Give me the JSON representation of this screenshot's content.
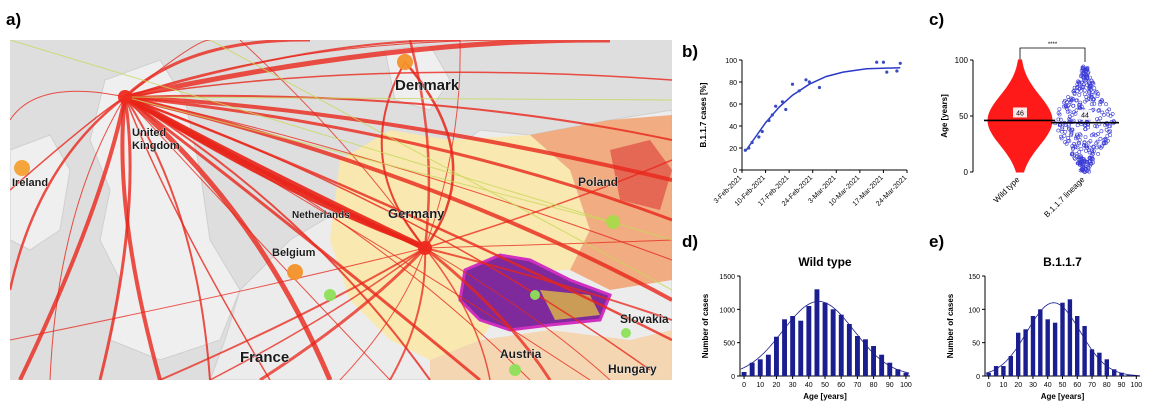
{
  "panel_labels": {
    "a": "a)",
    "b": "b)",
    "c": "c)",
    "d": "d)",
    "e": "e)"
  },
  "map": {
    "place_labels": [
      "United Kingdom",
      "Ireland",
      "Denmark",
      "Netherlands",
      "Germany",
      "Poland",
      "Belgium",
      "France",
      "Austria",
      "Slovakia",
      "Hungary"
    ],
    "colors": {
      "route": "#e8251a",
      "sea": "#e0e0e0",
      "land": "#ececec",
      "heat_low": "#fbe6a6",
      "heat_high": "#e8734e",
      "czech": "#c12d9b"
    }
  },
  "chart_data": [
    {
      "panel": "b",
      "type": "scatter",
      "ylabel": "B.1.1.7 cases [%]",
      "xlabel": "",
      "x_tick_labels": [
        "3-Feb-2021",
        "10-Feb-2021",
        "17-Feb-2021",
        "24-Feb-2021",
        "3-Mar-2021",
        "10-Mar-2021",
        "17-Mar-2021",
        "24-Mar-2021"
      ],
      "x_tick_dates": [
        "2021-02-03",
        "2021-02-10",
        "2021-02-17",
        "2021-02-24",
        "2021-03-03",
        "2021-03-10",
        "2021-03-17",
        "2021-03-24"
      ],
      "xlim": [
        "2021-02-03",
        "2021-03-24"
      ],
      "ylim": [
        0,
        100
      ],
      "y_ticks": [
        0,
        20,
        40,
        60,
        80,
        100
      ],
      "points": [
        {
          "x": "2021-02-04",
          "y": 18
        },
        {
          "x": "2021-02-05",
          "y": 20
        },
        {
          "x": "2021-02-06",
          "y": 25
        },
        {
          "x": "2021-02-08",
          "y": 30
        },
        {
          "x": "2021-02-09",
          "y": 35
        },
        {
          "x": "2021-02-11",
          "y": 45
        },
        {
          "x": "2021-02-12",
          "y": 50
        },
        {
          "x": "2021-02-13",
          "y": 58
        },
        {
          "x": "2021-02-15",
          "y": 62
        },
        {
          "x": "2021-02-16",
          "y": 55
        },
        {
          "x": "2021-02-18",
          "y": 78
        },
        {
          "x": "2021-02-20",
          "y": 72
        },
        {
          "x": "2021-02-22",
          "y": 82
        },
        {
          "x": "2021-02-23",
          "y": 80
        },
        {
          "x": "2021-02-26",
          "y": 75
        },
        {
          "x": "2021-03-15",
          "y": 98
        },
        {
          "x": "2021-03-17",
          "y": 98
        },
        {
          "x": "2021-03-18",
          "y": 89
        },
        {
          "x": "2021-03-21",
          "y": 90
        },
        {
          "x": "2021-03-22",
          "y": 97
        }
      ],
      "fit": [
        {
          "x": "2021-02-04",
          "y": 17
        },
        {
          "x": "2021-02-07",
          "y": 30
        },
        {
          "x": "2021-02-10",
          "y": 43
        },
        {
          "x": "2021-02-14",
          "y": 57
        },
        {
          "x": "2021-02-18",
          "y": 68
        },
        {
          "x": "2021-02-23",
          "y": 78
        },
        {
          "x": "2021-02-28",
          "y": 85
        },
        {
          "x": "2021-03-05",
          "y": 89
        },
        {
          "x": "2021-03-12",
          "y": 92
        },
        {
          "x": "2021-03-22",
          "y": 93
        }
      ],
      "colors": {
        "points": "#3b4cc0",
        "fit": "#2a39c8"
      }
    },
    {
      "panel": "c",
      "type": "scatter",
      "ylabel": "Age [years]",
      "categories": [
        "Wild type",
        "B.1.1.7 lineage"
      ],
      "medians": [
        46,
        44
      ],
      "median_labels": [
        "46",
        "44"
      ],
      "ranges": [
        [
          0,
          100
        ],
        [
          0,
          95
        ]
      ],
      "ylim": [
        0,
        100
      ],
      "y_ticks": [
        0,
        50,
        100
      ],
      "significance": "****",
      "colors": {
        "wild": "#ff1a1a",
        "b117": "#3b3bd6"
      }
    },
    {
      "panel": "d",
      "type": "bar",
      "title": "Wild type",
      "xlabel": "Age [years]",
      "ylabel": "Number of cases",
      "x_centers": [
        0,
        5,
        10,
        15,
        20,
        25,
        30,
        35,
        40,
        45,
        50,
        55,
        60,
        65,
        70,
        75,
        80,
        85,
        90,
        95,
        100
      ],
      "values": [
        60,
        200,
        250,
        320,
        590,
        850,
        900,
        830,
        1050,
        1300,
        1100,
        1000,
        920,
        780,
        600,
        550,
        450,
        320,
        200,
        100,
        50
      ],
      "ylim": [
        0,
        1500
      ],
      "y_ticks": [
        0,
        500,
        1000,
        1500
      ],
      "x_ticks": [
        0,
        10,
        20,
        30,
        40,
        50,
        60,
        70,
        80,
        90,
        100
      ],
      "fit_peak": 1120,
      "fit_mean": 46,
      "fit_sd": 22,
      "colors": {
        "bar": "#1b1e8f",
        "fit": "#1b1e8f"
      }
    },
    {
      "panel": "e",
      "type": "bar",
      "title": "B.1.1.7",
      "xlabel": "Age [years]",
      "ylabel": "Number of cases",
      "x_centers": [
        0,
        5,
        10,
        15,
        20,
        25,
        30,
        35,
        40,
        45,
        50,
        55,
        60,
        65,
        70,
        75,
        80,
        85,
        90,
        95,
        100
      ],
      "values": [
        5,
        15,
        15,
        30,
        65,
        70,
        90,
        100,
        85,
        80,
        110,
        115,
        90,
        75,
        40,
        35,
        25,
        10,
        5,
        2,
        0
      ],
      "ylim": [
        0,
        150
      ],
      "y_ticks": [
        0,
        50,
        100,
        150
      ],
      "x_ticks": [
        0,
        10,
        20,
        30,
        40,
        50,
        60,
        70,
        80,
        90,
        100
      ],
      "fit_peak": 110,
      "fit_mean": 44,
      "fit_sd": 18,
      "colors": {
        "bar": "#1b1e8f",
        "fit": "#1b1e8f"
      }
    }
  ]
}
